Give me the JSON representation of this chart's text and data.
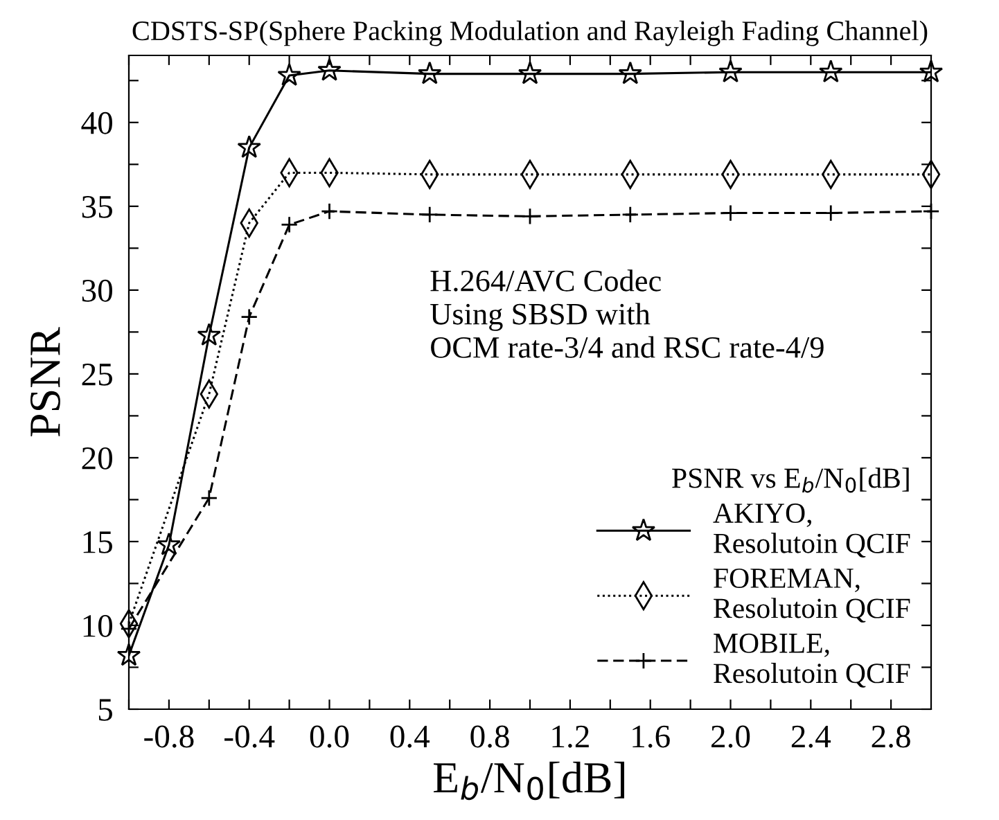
{
  "chart_data": {
    "type": "line",
    "title": "CDSTS-SP(Sphere Packing Modulation and Rayleigh Fading Channel)",
    "xlabel": "E$_{b}$/N$_{0}$[dB]",
    "ylabel": "PSNR",
    "legend_title": "PSNR vs E$_{b}$/N$_{0}$[dB]",
    "annotations": [
      "H.264/AVC Codec\nUsing SBSD with\nOCM rate-3/4 and RSC rate-4/9"
    ],
    "series": [
      {
        "name": "AKIYO,\nResolutoin QCIF",
        "color": "#000000",
        "marker": "star",
        "line_style": "solid",
        "x": [
          -1.0,
          -0.8,
          -0.6,
          -0.4,
          -0.2,
          0.0,
          0.5,
          1.0,
          1.5,
          2.0,
          2.5,
          3.0
        ],
        "values": [
          8.2,
          14.8,
          27.3,
          38.5,
          42.8,
          43.1,
          42.9,
          42.9,
          42.9,
          43.0,
          43.0,
          43.0
        ]
      },
      {
        "name": "FOREMAN,\nResolutoin QCIF",
        "color": "#000000",
        "marker": "diamond",
        "line_style": "dotted",
        "x": [
          -1.0,
          -0.6,
          -0.4,
          -0.2,
          0.0,
          0.5,
          1.0,
          1.5,
          2.0,
          2.5,
          3.0
        ],
        "values": [
          10.1,
          23.8,
          34.0,
          37.0,
          37.0,
          36.9,
          36.9,
          36.9,
          36.9,
          36.9,
          36.9
        ]
      },
      {
        "name": "MOBILE,\nResolutoin QCIF",
        "color": "#000000",
        "marker": "cross",
        "line_style": "dashed",
        "x": [
          -1.0,
          -0.6,
          -0.4,
          -0.2,
          0.0,
          0.5,
          1.0,
          1.5,
          2.0,
          2.5,
          3.0
        ],
        "values": [
          9.8,
          17.6,
          28.4,
          33.9,
          34.7,
          34.5,
          34.4,
          34.5,
          34.6,
          34.6,
          34.7
        ]
      }
    ],
    "xlim": [
      -1.0,
      3.0
    ],
    "ylim": [
      5,
      44
    ],
    "xticks": [
      {
        "value": -1.0,
        "label": null
      },
      {
        "value": -0.8,
        "label": "-0.8"
      },
      {
        "value": -0.6,
        "label": null
      },
      {
        "value": -0.4,
        "label": "-0.4"
      },
      {
        "value": -0.2,
        "label": null
      },
      {
        "value": 0.0,
        "label": "0.0"
      },
      {
        "value": 0.2,
        "label": null
      },
      {
        "value": 0.4,
        "label": "0.4"
      },
      {
        "value": 0.6,
        "label": null
      },
      {
        "value": 0.8,
        "label": "0.8"
      },
      {
        "value": 1.0,
        "label": null
      },
      {
        "value": 1.2,
        "label": "1.2"
      },
      {
        "value": 1.4,
        "label": null
      },
      {
        "value": 1.6,
        "label": "1.6"
      },
      {
        "value": 1.8,
        "label": null
      },
      {
        "value": 2.0,
        "label": "2.0"
      },
      {
        "value": 2.2,
        "label": null
      },
      {
        "value": 2.4,
        "label": "2.4"
      },
      {
        "value": 2.6,
        "label": null
      },
      {
        "value": 2.8,
        "label": "2.8"
      }
    ],
    "yticks": [
      5,
      {
        "value": 7.5,
        "label": null
      },
      10,
      {
        "value": 12.5,
        "label": null
      },
      15,
      {
        "value": 17.5,
        "label": null
      },
      20,
      {
        "value": 22.5,
        "label": null
      },
      25,
      {
        "value": 27.5,
        "label": null
      },
      30,
      {
        "value": 32.5,
        "label": null
      },
      35,
      {
        "value": 37.5,
        "label": null
      },
      40,
      {
        "value": 42.5,
        "label": null
      }
    ],
    "grid": false,
    "legend": "bottom right"
  }
}
